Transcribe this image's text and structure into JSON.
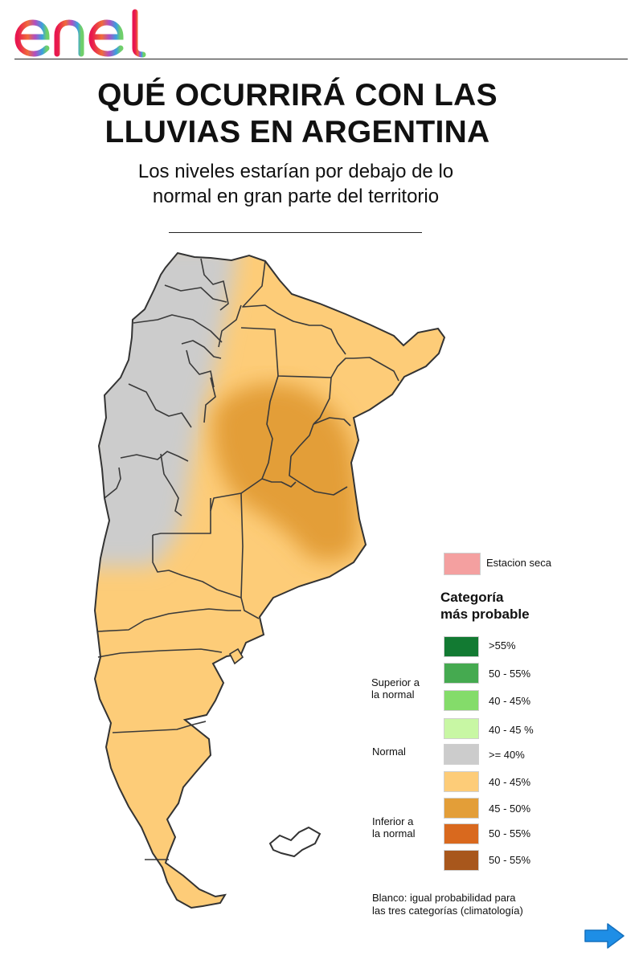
{
  "brand": {
    "name": "enel"
  },
  "header": {
    "title_line1": "QUÉ OCURRIRÁ CON LAS",
    "title_line2": "LLUVIAS EN ARGENTINA",
    "subtitle_line1": "Los niveles estarían por debajo de lo",
    "subtitle_line2": "normal en gran parte del territorio"
  },
  "map": {
    "region": "Argentina",
    "dominant_category": "Inferior a la normal",
    "west_category": "Normal",
    "core_category": "Inferior a la normal 45 - 50%"
  },
  "legend": {
    "dry_season": {
      "label": "Estacion seca",
      "color": "#f4a0a0"
    },
    "category_title_line1": "Categoría",
    "category_title_line2": "más probable",
    "groups": {
      "superior_line1": "Superior a",
      "superior_line2": "la normal",
      "normal": "Normal",
      "inferior_line1": "Inferior a",
      "inferior_line2": "la normal"
    },
    "items": [
      {
        "label": ">55%",
        "color": "#127a32"
      },
      {
        "label": "50 - 55%",
        "color": "#45aa50"
      },
      {
        "label": "40 - 45%",
        "color": "#84dc6a"
      },
      {
        "label": "40 - 45 %",
        "color": "#c8f7a4"
      },
      {
        "label": ">= 40%",
        "color": "#cccccc"
      },
      {
        "label": "40 - 45%",
        "color": "#fdcc78"
      },
      {
        "label": "45 - 50%",
        "color": "#e39e38"
      },
      {
        "label": "50 - 55%",
        "color": "#d9691e"
      },
      {
        "label": "50 - 55%",
        "color": "#a8571c"
      }
    ],
    "note_line1": "Blanco: igual probabilidad para",
    "note_line2": "las tres categorías (climatología)"
  },
  "navigation": {
    "next_icon": "arrow-right-icon"
  }
}
